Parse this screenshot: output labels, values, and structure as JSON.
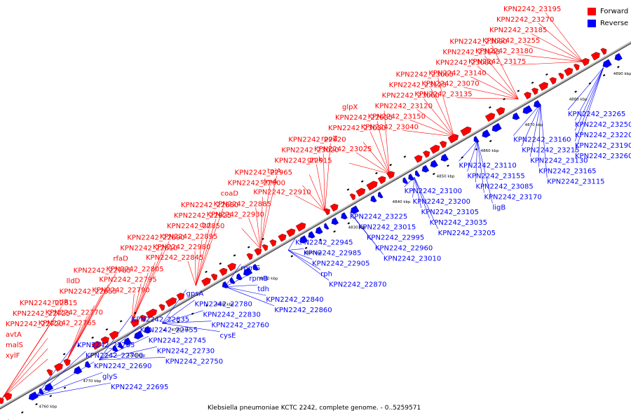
{
  "caption": "Klebsiella pneumoniae KCTC 2242, complete genome. - 0..5259571",
  "legend": {
    "forward_label": "Forward",
    "reverse_label": "Reverse",
    "forward_color": "#ff0000",
    "reverse_color": "#0000ff"
  },
  "scale_ticks": [
    "4760 kbp",
    "4770 kbp",
    "4780 kbp",
    "4790 kbp",
    "4800 kbp",
    "4810 kbp",
    "4820 kbp",
    "4830 kbp",
    "4840 kbp",
    "4850 kbp",
    "4860 kbp",
    "4870 kbp",
    "4880 kbp",
    "4890 kbp"
  ],
  "forward_labels": [
    "KPN2242_23195",
    "KPN2242_23270",
    "KPN2242_23185",
    "KPN2242_23255",
    "KPN2242_23180",
    "KPN2242_23175",
    "KPN2242_23090",
    "KPN2242_23145",
    "KPN2242_23080",
    "KPN2242_23140",
    "KPN2242_23070",
    "KPN2242_23135",
    "KPN2242_23065",
    "KPN2242_23125",
    "KPN2242_23060",
    "KPN2242_23120",
    "KPN2242_23150",
    "KPN2242_23040",
    "glpX",
    "KPN2242_22935",
    "KPN2242_23030",
    "rpoZ",
    "KPN2242_23025",
    "gmk",
    "KPN2242_22920",
    "KPN2242_23020",
    "KPN2242_22915",
    "tpiA",
    "slmA",
    "KPN2242_22910",
    "KPN2242_22965",
    "KPN2242_22900",
    "coaD",
    "KPN2242_22885",
    "KPN2242_22930",
    "dut",
    "KPN2242_22880",
    "KPN2242_22925",
    "KPN2242_22850",
    "KPN2242_22895",
    "KPN2242_22980",
    "KPN2242_22845",
    "KPN2242_22890",
    "KPN2242_22810",
    "rfaD",
    "KPN2242_22805",
    "KPN2242_22795",
    "KPN2242_22790",
    "KPN2242_22785",
    "lldD",
    "KPN2242_22855",
    "mtlR",
    "KPN2242_22770",
    "KPN2242_22765",
    "KPN2242_22815",
    "KPN2242_22725",
    "KPN2242_22720",
    "avtA",
    "malS",
    "xylF"
  ],
  "reverse_labels": [
    "KPN2242_23265",
    "KPN2242_23250",
    "KPN2242_23220",
    "KPN2242_23190",
    "KPN2242_23260",
    "KPN2242_23160",
    "KPN2242_23215",
    "KPN2242_23130",
    "KPN2242_23165",
    "KPN2242_23115",
    "KPN2242_23110",
    "KPN2242_23155",
    "KPN2242_23085",
    "KPN2242_23170",
    "ligB",
    "KPN2242_23100",
    "KPN2242_23200",
    "KPN2242_23105",
    "KPN2242_23035",
    "KPN2242_23205",
    "KPN2242_23225",
    "KPN2242_23015",
    "KPN2242_22995",
    "KPN2242_22960",
    "KPN2242_23010",
    "KPN2242_22945",
    "KPN2242_22985",
    "KPN2242_22905",
    "rph",
    "KPN2242_22870",
    "rpmG",
    "rpmB",
    "tdh",
    "KPN2242_22840",
    "KPN2242_22860",
    "gpsA",
    "KPN2242_22780",
    "KPN2242_22830",
    "KPN2242_22760",
    "cysE",
    "KPN2242_22835",
    "KPN2242_22755",
    "KPN2242_22745",
    "KPN2242_22730",
    "KPN2242_22750",
    "KPN2242_22705",
    "KPN2242_22700",
    "KPN2242_22690",
    "glyS",
    "KPN2242_22695"
  ]
}
